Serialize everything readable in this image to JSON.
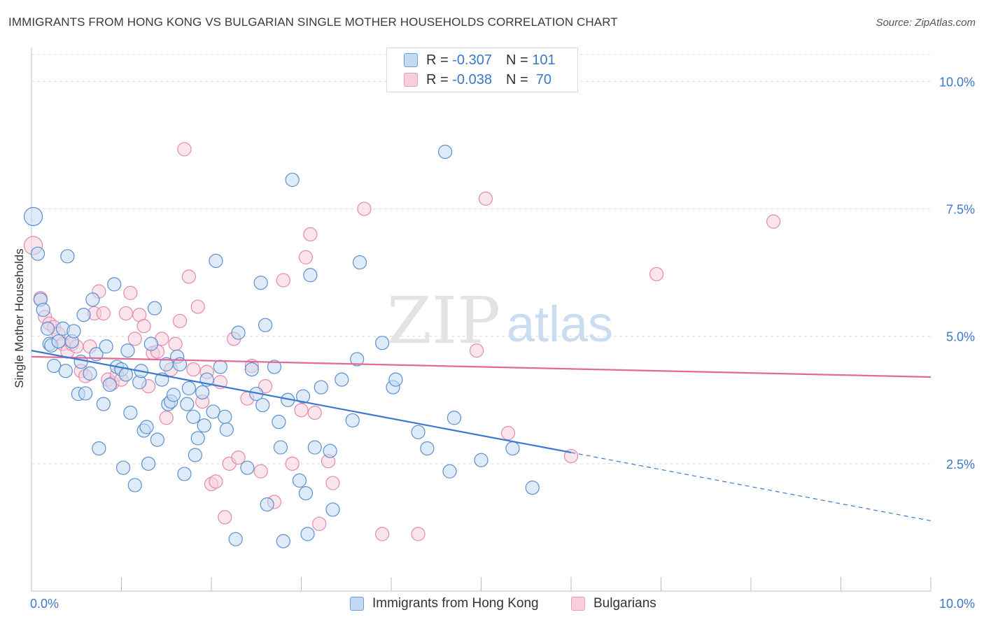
{
  "title": "IMMIGRANTS FROM HONG KONG VS BULGARIAN SINGLE MOTHER HOUSEHOLDS CORRELATION CHART",
  "source": "Source: ZipAtlas.com",
  "watermark": {
    "zip": "ZIP",
    "atlas": "atlas"
  },
  "legend_top": {
    "rows": [
      {
        "r_label": "R =",
        "r_value": "-0.307",
        "n_label": "N =",
        "n_value": "101"
      },
      {
        "r_label": "R =",
        "r_value": "-0.038",
        "n_label": "N =",
        "n_value": "70"
      }
    ]
  },
  "chart_data": {
    "type": "scatter",
    "title": "IMMIGRANTS FROM HONG KONG VS BULGARIAN SINGLE MOTHER HOUSEHOLDS CORRELATION CHART",
    "xlabel": "",
    "ylabel": "Single Mother Households",
    "xlim": [
      0,
      10
    ],
    "ylim": [
      0,
      10.5
    ],
    "x_tick_labels": [
      "0.0%",
      "10.0%"
    ],
    "y_tick_labels": [
      "2.5%",
      "5.0%",
      "7.5%",
      "10.0%"
    ],
    "y_ticks": [
      2.5,
      5.0,
      7.5,
      10.0
    ],
    "grid": true,
    "legend_position": "bottom",
    "colors": {
      "Immigrants from Hong Kong": "#6a9fd8",
      "Bulgarians": "#ec9ab5",
      "line_blue": "#3a78d0",
      "line_pink": "#e06c95"
    },
    "series": [
      {
        "name": "Immigrants from Hong Kong",
        "trend": {
          "x0": 0.0,
          "y0": 4.72,
          "x1": 6.0,
          "y1": 2.72,
          "dashed_to_x": 10.0,
          "dashed_to_y": 1.38
        },
        "points": [
          [
            0.02,
            7.35
          ],
          [
            0.07,
            6.62
          ],
          [
            0.1,
            5.72
          ],
          [
            0.13,
            5.52
          ],
          [
            0.18,
            5.15
          ],
          [
            0.2,
            4.85
          ],
          [
            0.22,
            4.82
          ],
          [
            0.25,
            4.42
          ],
          [
            0.3,
            4.9
          ],
          [
            0.35,
            5.15
          ],
          [
            0.38,
            4.32
          ],
          [
            0.4,
            6.57
          ],
          [
            0.45,
            4.9
          ],
          [
            0.47,
            5.1
          ],
          [
            0.52,
            3.87
          ],
          [
            0.55,
            4.5
          ],
          [
            0.58,
            5.42
          ],
          [
            0.6,
            3.88
          ],
          [
            0.65,
            4.27
          ],
          [
            0.68,
            5.72
          ],
          [
            0.72,
            4.65
          ],
          [
            0.75,
            2.8
          ],
          [
            0.8,
            3.67
          ],
          [
            0.83,
            4.8
          ],
          [
            0.87,
            4.05
          ],
          [
            0.92,
            6.02
          ],
          [
            0.95,
            4.4
          ],
          [
            1.0,
            4.35
          ],
          [
            1.02,
            2.42
          ],
          [
            1.05,
            4.25
          ],
          [
            1.07,
            4.72
          ],
          [
            1.1,
            3.5
          ],
          [
            1.15,
            2.08
          ],
          [
            1.2,
            4.1
          ],
          [
            1.22,
            4.32
          ],
          [
            1.25,
            3.15
          ],
          [
            1.28,
            3.22
          ],
          [
            1.3,
            2.5
          ],
          [
            1.33,
            4.85
          ],
          [
            1.37,
            5.55
          ],
          [
            1.4,
            2.97
          ],
          [
            1.45,
            4.15
          ],
          [
            1.5,
            4.45
          ],
          [
            1.52,
            3.67
          ],
          [
            1.55,
            3.72
          ],
          [
            1.58,
            3.85
          ],
          [
            1.62,
            4.6
          ],
          [
            1.65,
            4.45
          ],
          [
            1.7,
            2.3
          ],
          [
            1.73,
            3.67
          ],
          [
            1.75,
            3.98
          ],
          [
            1.8,
            3.42
          ],
          [
            1.82,
            2.67
          ],
          [
            1.85,
            3.0
          ],
          [
            1.9,
            3.9
          ],
          [
            1.92,
            3.25
          ],
          [
            1.95,
            4.15
          ],
          [
            2.02,
            3.52
          ],
          [
            2.05,
            6.48
          ],
          [
            2.1,
            4.4
          ],
          [
            2.15,
            3.42
          ],
          [
            2.17,
            3.17
          ],
          [
            2.27,
            1.02
          ],
          [
            2.3,
            5.07
          ],
          [
            2.4,
            2.42
          ],
          [
            2.45,
            4.35
          ],
          [
            2.5,
            3.87
          ],
          [
            2.55,
            6.05
          ],
          [
            2.57,
            3.65
          ],
          [
            2.6,
            5.22
          ],
          [
            2.62,
            1.7
          ],
          [
            2.7,
            4.4
          ],
          [
            2.75,
            3.32
          ],
          [
            2.77,
            2.82
          ],
          [
            2.8,
            0.98
          ],
          [
            2.85,
            3.75
          ],
          [
            2.9,
            8.07
          ],
          [
            2.98,
            2.17
          ],
          [
            3.02,
            3.82
          ],
          [
            3.05,
            1.92
          ],
          [
            3.07,
            1.12
          ],
          [
            3.1,
            6.2
          ],
          [
            3.15,
            2.82
          ],
          [
            3.22,
            4.0
          ],
          [
            3.32,
            2.75
          ],
          [
            3.35,
            1.6
          ],
          [
            3.45,
            4.15
          ],
          [
            3.57,
            3.35
          ],
          [
            3.62,
            4.55
          ],
          [
            3.65,
            6.45
          ],
          [
            3.9,
            4.87
          ],
          [
            4.02,
            4.0
          ],
          [
            4.05,
            4.15
          ],
          [
            4.3,
            3.12
          ],
          [
            4.4,
            2.8
          ],
          [
            4.6,
            8.62
          ],
          [
            4.65,
            2.35
          ],
          [
            4.7,
            3.4
          ],
          [
            5.0,
            2.57
          ],
          [
            5.35,
            2.8
          ],
          [
            5.57,
            2.03
          ]
        ]
      },
      {
        "name": "Bulgarians",
        "trend": {
          "x0": 0.0,
          "y0": 4.6,
          "x1": 10.0,
          "y1": 4.2
        },
        "points": [
          [
            0.02,
            6.78
          ],
          [
            0.1,
            5.75
          ],
          [
            0.15,
            5.38
          ],
          [
            0.2,
            5.25
          ],
          [
            0.25,
            5.18
          ],
          [
            0.3,
            5.05
          ],
          [
            0.35,
            4.85
          ],
          [
            0.4,
            4.7
          ],
          [
            0.45,
            4.85
          ],
          [
            0.5,
            4.8
          ],
          [
            0.55,
            4.32
          ],
          [
            0.6,
            4.22
          ],
          [
            0.65,
            4.8
          ],
          [
            0.7,
            5.45
          ],
          [
            0.75,
            5.88
          ],
          [
            0.8,
            5.45
          ],
          [
            0.85,
            4.15
          ],
          [
            0.9,
            4.08
          ],
          [
            0.95,
            4.25
          ],
          [
            1.0,
            4.15
          ],
          [
            1.05,
            5.45
          ],
          [
            1.1,
            5.85
          ],
          [
            1.15,
            4.95
          ],
          [
            1.2,
            5.42
          ],
          [
            1.25,
            5.2
          ],
          [
            1.3,
            4.02
          ],
          [
            1.35,
            4.67
          ],
          [
            1.4,
            4.7
          ],
          [
            1.45,
            4.95
          ],
          [
            1.5,
            3.4
          ],
          [
            1.55,
            4.35
          ],
          [
            1.6,
            4.85
          ],
          [
            1.65,
            5.3
          ],
          [
            1.7,
            8.67
          ],
          [
            1.75,
            6.17
          ],
          [
            1.8,
            4.35
          ],
          [
            1.85,
            5.58
          ],
          [
            1.9,
            3.72
          ],
          [
            1.95,
            4.3
          ],
          [
            2.0,
            2.1
          ],
          [
            2.05,
            2.15
          ],
          [
            2.1,
            4.1
          ],
          [
            2.15,
            1.45
          ],
          [
            2.2,
            2.5
          ],
          [
            2.25,
            4.95
          ],
          [
            2.3,
            2.62
          ],
          [
            2.4,
            3.78
          ],
          [
            2.45,
            4.42
          ],
          [
            2.55,
            2.35
          ],
          [
            2.6,
            4.02
          ],
          [
            2.7,
            1.75
          ],
          [
            2.8,
            6.1
          ],
          [
            2.9,
            2.5
          ],
          [
            3.0,
            3.55
          ],
          [
            3.05,
            6.55
          ],
          [
            3.1,
            7.0
          ],
          [
            3.15,
            3.5
          ],
          [
            3.2,
            1.32
          ],
          [
            3.3,
            2.55
          ],
          [
            3.35,
            2.12
          ],
          [
            3.7,
            7.5
          ],
          [
            3.9,
            1.12
          ],
          [
            4.3,
            1.12
          ],
          [
            4.95,
            4.72
          ],
          [
            5.05,
            7.7
          ],
          [
            5.3,
            3.1
          ],
          [
            5.55,
            9.95
          ],
          [
            6.0,
            2.65
          ],
          [
            6.95,
            6.22
          ],
          [
            8.25,
            7.25
          ]
        ]
      }
    ]
  },
  "bottom_legend": [
    {
      "label": "Immigrants from Hong Kong"
    },
    {
      "label": "Bulgarians"
    }
  ]
}
